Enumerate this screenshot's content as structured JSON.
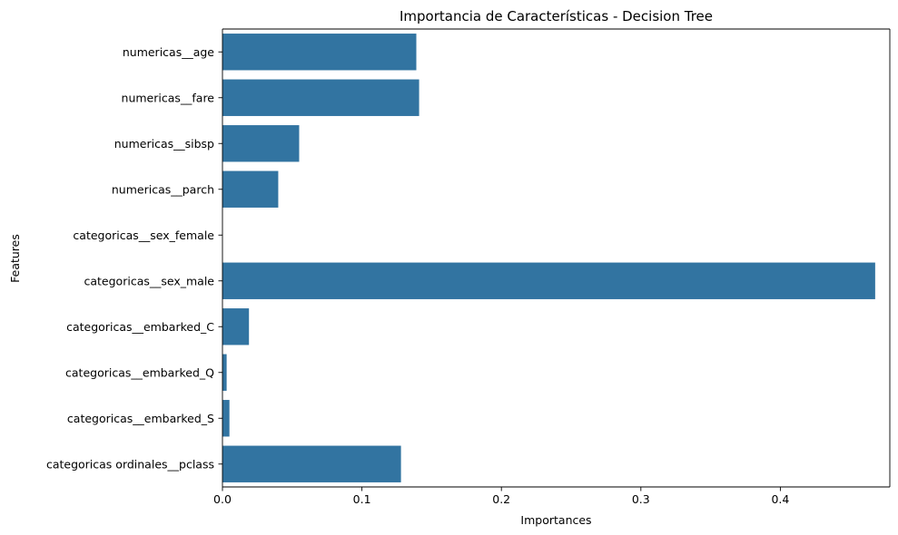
{
  "chart_data": {
    "type": "bar",
    "orientation": "horizontal",
    "title": "Importancia de Características - Decision Tree",
    "xlabel": "Importances",
    "ylabel": "Features",
    "categories": [
      "numericas__age",
      "numericas__fare",
      "numericas__sibsp",
      "numericas__parch",
      "categoricas__sex_female",
      "categoricas__sex_male",
      "categoricas__embarked_C",
      "categoricas__embarked_Q",
      "categoricas__embarked_S",
      "categoricas ordinales__pclass"
    ],
    "values": [
      0.139,
      0.141,
      0.055,
      0.04,
      0.0,
      0.468,
      0.019,
      0.003,
      0.005,
      0.128
    ],
    "xlim": [
      0,
      0.4785
    ],
    "xticks": [
      0,
      0.1,
      0.2,
      0.3,
      0.4
    ],
    "xtick_labels": [
      "0.0",
      "0.1",
      "0.2",
      "0.3",
      "0.4"
    ],
    "bar_color": "#3274a1",
    "grid": false,
    "legend": "none"
  }
}
